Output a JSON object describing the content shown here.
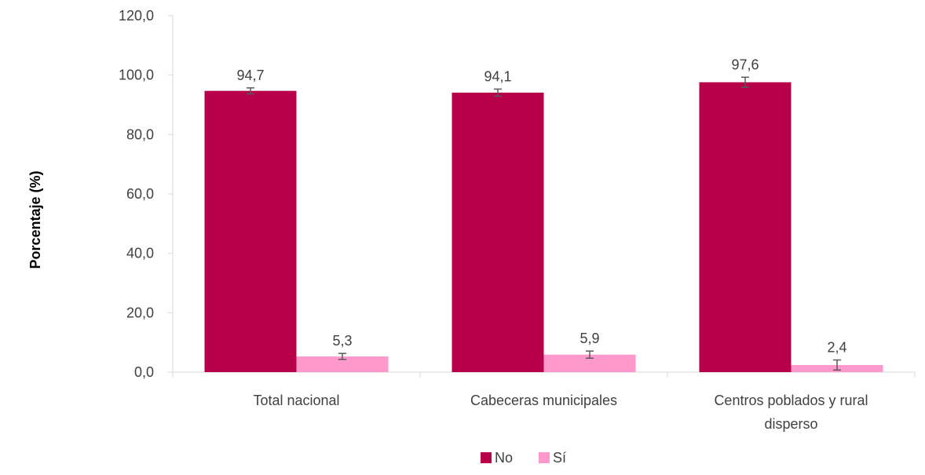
{
  "chart_data": {
    "type": "bar",
    "title": "",
    "xlabel": "",
    "ylabel": "Porcentaje (%)",
    "ylim": [
      0,
      120
    ],
    "yticks": [
      "0,0",
      "20,0",
      "40,0",
      "60,0",
      "80,0",
      "100,0",
      "120,0"
    ],
    "grid": false,
    "legend_position": "bottom",
    "categories": [
      [
        "Total nacional"
      ],
      [
        "Cabeceras municipales"
      ],
      [
        "Centros poblados y rural",
        "disperso"
      ]
    ],
    "series": [
      {
        "name": "No",
        "color": "#b8004a",
        "values": [
          94.7,
          94.1,
          97.6
        ],
        "labels": [
          "94,7",
          "94,1",
          "97,6"
        ],
        "error": [
          1.0,
          1.2,
          1.7
        ]
      },
      {
        "name": "Sí",
        "color": "#ff99cc",
        "values": [
          5.3,
          5.9,
          2.4
        ],
        "labels": [
          "5,3",
          "5,9",
          "2,4"
        ],
        "error": [
          1.0,
          1.2,
          1.7
        ]
      }
    ],
    "error_bar_color": "#595959"
  }
}
